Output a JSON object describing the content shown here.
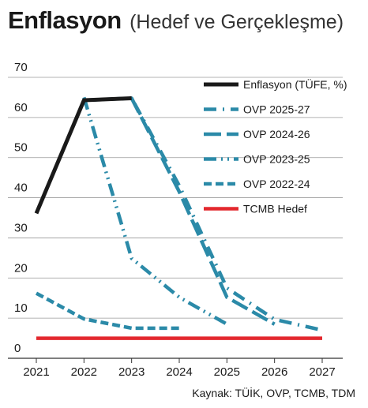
{
  "title": "Enflasyon",
  "subtitle": "(Hedef ve Gerçekleşme)",
  "source": "Kaynak: TÜİK, OVP, TCMB, TDM",
  "chart_data": {
    "type": "line",
    "title": "Enflasyon (Hedef ve Gerçekleşme)",
    "xlabel": "",
    "ylabel": "",
    "x_ticks": [
      "2021",
      "2022",
      "2023",
      "2024",
      "2025",
      "2026",
      "2027"
    ],
    "y_ticks": [
      "0",
      "10",
      "20",
      "30",
      "40",
      "50",
      "60",
      "70"
    ],
    "ylim": [
      0,
      70
    ],
    "xlim": [
      2021,
      2027
    ],
    "grid": "horizontal",
    "legend_position": "top-right",
    "series": [
      {
        "name": "Enflasyon (TÜFE, %)",
        "color": "#1a1a1a",
        "style": "solid",
        "points": [
          [
            2021,
            36.1
          ],
          [
            2022,
            64.3
          ],
          [
            2023,
            64.8
          ]
        ]
      },
      {
        "name": "OVP 2025-27",
        "color": "#2b8aa8",
        "style": "dash-dot",
        "points": [
          [
            2022,
            64.3
          ],
          [
            2023,
            64.8
          ],
          [
            2024,
            43.0
          ],
          [
            2025,
            17.5
          ],
          [
            2026,
            9.7
          ],
          [
            2027,
            7.0
          ]
        ]
      },
      {
        "name": "OVP 2024-26",
        "color": "#2b8aa8",
        "style": "long-dash",
        "points": [
          [
            2022,
            64.3
          ],
          [
            2023,
            64.8
          ],
          [
            2024,
            41.5
          ],
          [
            2025,
            15.2
          ],
          [
            2026,
            8.5
          ]
        ]
      },
      {
        "name": "OVP 2023-25",
        "color": "#2b8aa8",
        "style": "dash-dot-dot",
        "points": [
          [
            2022,
            65.0
          ],
          [
            2023,
            24.9
          ],
          [
            2024,
            15.2
          ],
          [
            2025,
            8.5
          ]
        ]
      },
      {
        "name": "OVP 2022-24",
        "color": "#2b8aa8",
        "style": "dash",
        "points": [
          [
            2021,
            16.2
          ],
          [
            2022,
            9.8
          ],
          [
            2023,
            7.5
          ],
          [
            2024,
            7.5
          ]
        ]
      },
      {
        "name": "TCMB Hedef",
        "color": "#e3282e",
        "style": "solid",
        "points": [
          [
            2021,
            5.0
          ],
          [
            2022,
            5.0
          ],
          [
            2023,
            5.0
          ],
          [
            2024,
            5.0
          ],
          [
            2025,
            5.0
          ],
          [
            2026,
            5.0
          ],
          [
            2027,
            5.0
          ]
        ]
      }
    ]
  }
}
